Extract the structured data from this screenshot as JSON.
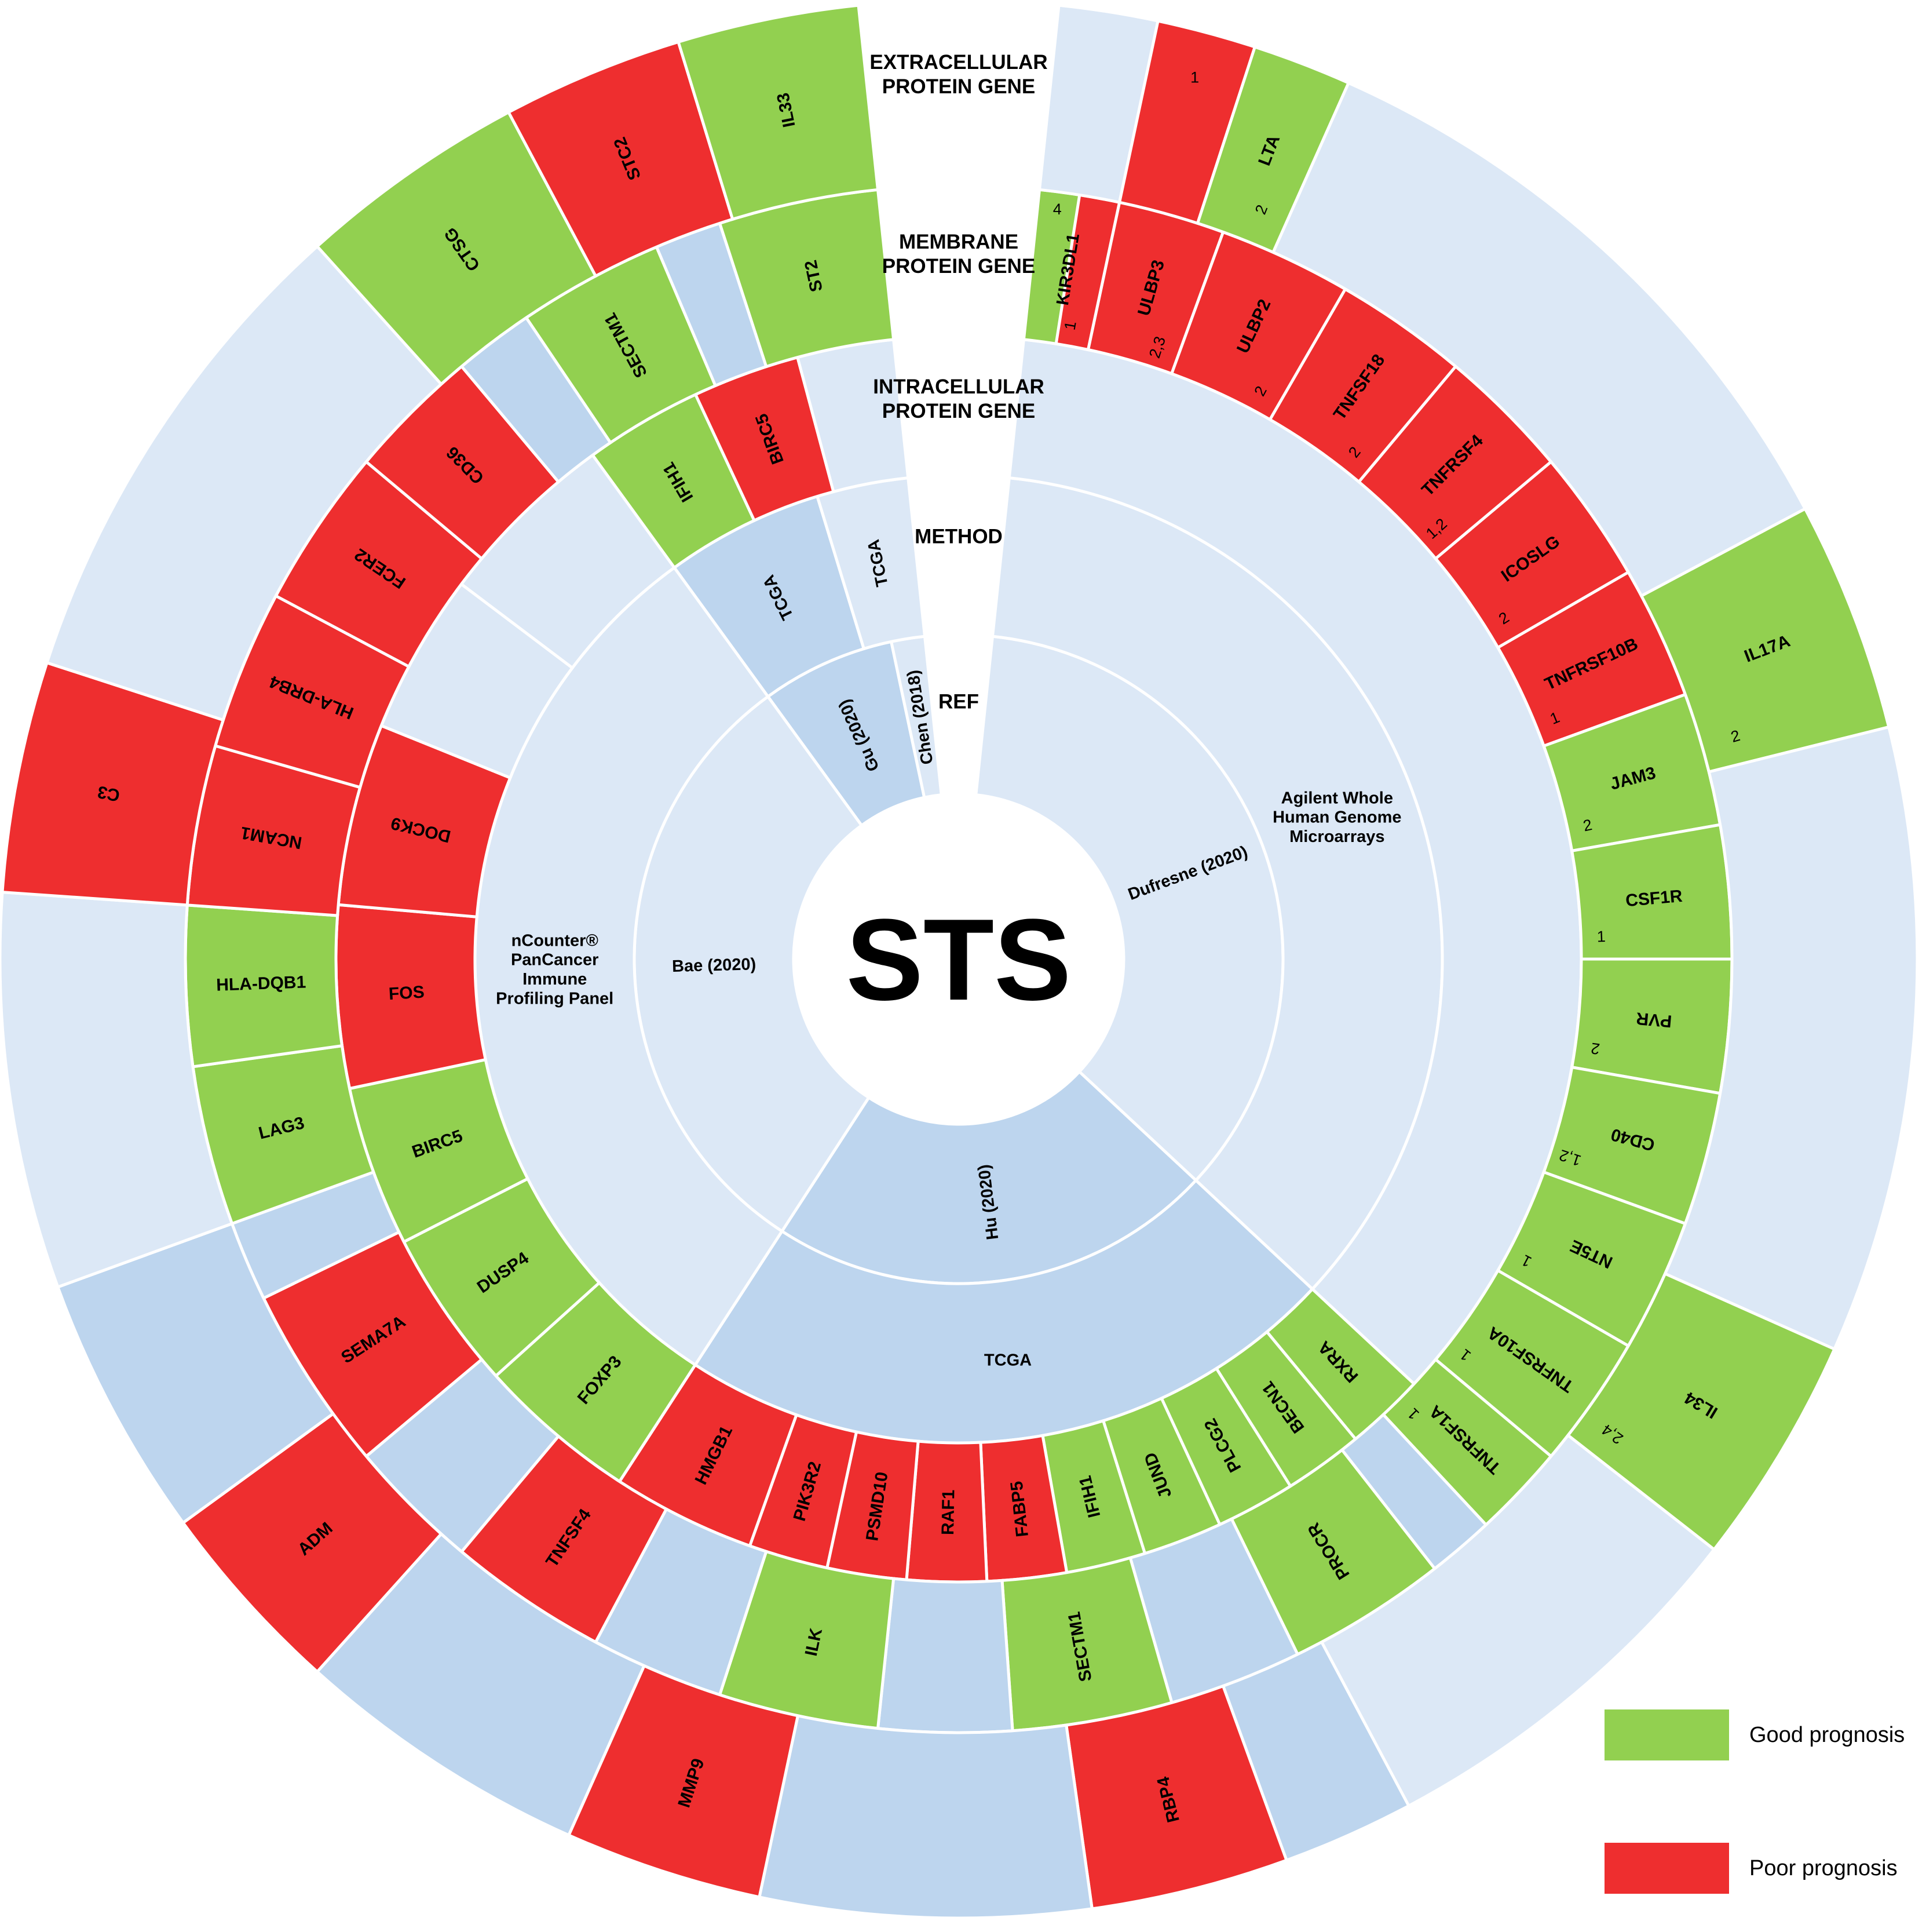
{
  "center_title": "STS",
  "ring_labels": {
    "extracellular": [
      "EXTRACELLULAR",
      "PROTEIN GENE"
    ],
    "membrane": [
      "MEMBRANE",
      "PROTEIN GENE"
    ],
    "intracellular": [
      "INTRACELLULAR",
      "PROTEIN GENE"
    ],
    "method": [
      "METHOD"
    ],
    "ref": [
      "REF"
    ]
  },
  "colors": {
    "good": "#92d050",
    "poor": "#ee2e2f",
    "light_bg": "#dce8f6",
    "mid_bg": "#bdd5ee",
    "center": "#ffffff"
  },
  "legend": [
    {
      "label": "Good prognosis",
      "color": "#92d050"
    },
    {
      "label": "Poor prognosis",
      "color": "#ee2e2f"
    }
  ],
  "studies": [
    {
      "ref": "Dufresne (2020)",
      "method": [
        "Agilent Whole",
        "Human Genome",
        "Microarrays"
      ]
    },
    {
      "ref": "Hu (2020)",
      "method": [
        "TCGA"
      ]
    },
    {
      "ref": "Bae (2020)",
      "method": [
        "nCounter®",
        "PanCancer",
        "Immune",
        "Profiling Panel"
      ]
    },
    {
      "ref": "Gu (2020)",
      "method": [
        "TCGA"
      ]
    },
    {
      "ref": "Chen (2018)",
      "method": [
        "TCGA"
      ]
    }
  ],
  "genes": {
    "intracellular": [
      {
        "name": "IFIH1",
        "prognosis": "good",
        "study": "Gu (2020)"
      },
      {
        "name": "BIRC5",
        "prognosis": "poor",
        "study": "Chen (2018)"
      },
      {
        "name": "BIRC5",
        "prognosis": "good",
        "study": "Bae (2020)"
      },
      {
        "name": "DUSP4",
        "prognosis": "good",
        "study": "Bae (2020)"
      },
      {
        "name": "FOXP3",
        "prognosis": "good",
        "study": "Bae (2020)"
      },
      {
        "name": "FOS",
        "prognosis": "poor",
        "study": "Bae (2020)"
      },
      {
        "name": "DOCK9",
        "prognosis": "poor",
        "study": "Bae (2020)"
      },
      {
        "name": "HMGB1",
        "prognosis": "poor",
        "study": "Hu (2020)"
      },
      {
        "name": "PIK3R2",
        "prognosis": "poor",
        "study": "Hu (2020)"
      },
      {
        "name": "PSMD10",
        "prognosis": "poor",
        "study": "Hu (2020)"
      },
      {
        "name": "RAF1",
        "prognosis": "poor",
        "study": "Hu (2020)"
      },
      {
        "name": "FABP5",
        "prognosis": "poor",
        "study": "Hu (2020)"
      },
      {
        "name": "IFIH1",
        "prognosis": "good",
        "study": "Hu (2020)"
      },
      {
        "name": "JUND",
        "prognosis": "good",
        "study": "Hu (2020)"
      },
      {
        "name": "PLCG2",
        "prognosis": "good",
        "study": "Hu (2020)"
      },
      {
        "name": "BECN1",
        "prognosis": "good",
        "study": "Hu (2020)"
      },
      {
        "name": "RXRA",
        "prognosis": "good",
        "study": "Hu (2020)"
      }
    ],
    "membrane": [
      {
        "name": "KIR3DL1",
        "prognosis": "good/poor",
        "refs": [
          "4",
          "1"
        ]
      },
      {
        "name": "ULBP3",
        "prognosis": "poor",
        "refs": [
          "2,3"
        ]
      },
      {
        "name": "ULBP2",
        "prognosis": "poor",
        "refs": [
          "2"
        ]
      },
      {
        "name": "TNFSF18",
        "prognosis": "poor",
        "refs": [
          "2"
        ]
      },
      {
        "name": "TNFRSF4",
        "prognosis": "poor",
        "refs": [
          "1,2"
        ]
      },
      {
        "name": "ICOSLG",
        "prognosis": "poor",
        "refs": [
          "2"
        ]
      },
      {
        "name": "TNFRSF10B",
        "prognosis": "poor",
        "refs": [
          "1"
        ]
      },
      {
        "name": "JAM3",
        "prognosis": "good",
        "refs": [
          "2"
        ]
      },
      {
        "name": "CSF1R",
        "prognosis": "good",
        "refs": [
          "1"
        ]
      },
      {
        "name": "PVR",
        "prognosis": "good",
        "refs": [
          "2"
        ]
      },
      {
        "name": "CD40",
        "prognosis": "good",
        "refs": [
          "1,2"
        ]
      },
      {
        "name": "NT5E",
        "prognosis": "good",
        "refs": [
          "1"
        ]
      },
      {
        "name": "TNFRSF10A",
        "prognosis": "good",
        "refs": [
          "1"
        ]
      },
      {
        "name": "TNFRSF1A",
        "prognosis": "good",
        "refs": [
          "1"
        ]
      },
      {
        "name": "PROCR",
        "prognosis": "good"
      },
      {
        "name": "SECTM1",
        "prognosis": "good"
      },
      {
        "name": "ILK",
        "prognosis": "good"
      },
      {
        "name": "TNFSF4",
        "prognosis": "poor"
      },
      {
        "name": "SEMA7A",
        "prognosis": "poor"
      },
      {
        "name": "LAG3",
        "prognosis": "good"
      },
      {
        "name": "HLA-DQB1",
        "prognosis": "good"
      },
      {
        "name": "NCAM1",
        "prognosis": "poor"
      },
      {
        "name": "HLA-DRB4",
        "prognosis": "poor"
      },
      {
        "name": "FCER2",
        "prognosis": "poor"
      },
      {
        "name": "CD36",
        "prognosis": "poor"
      },
      {
        "name": "SECTM1",
        "prognosis": "good"
      },
      {
        "name": "ST2",
        "prognosis": "good"
      }
    ],
    "extracellular": [
      {
        "name": "LTA",
        "prognosis": "poor/good",
        "refs": [
          "1",
          "2"
        ]
      },
      {
        "name": "IL17A",
        "prognosis": "good",
        "refs": [
          "2"
        ]
      },
      {
        "name": "IL34",
        "prognosis": "good",
        "refs": [
          "2,4"
        ]
      },
      {
        "name": "RBP4",
        "prognosis": "poor"
      },
      {
        "name": "MMP9",
        "prognosis": "poor"
      },
      {
        "name": "ADM",
        "prognosis": "poor"
      },
      {
        "name": "C3",
        "prognosis": "poor"
      },
      {
        "name": "CTSG",
        "prognosis": "good"
      },
      {
        "name": "STC2",
        "prognosis": "poor"
      },
      {
        "name": "IL33",
        "prognosis": "good"
      }
    ]
  }
}
